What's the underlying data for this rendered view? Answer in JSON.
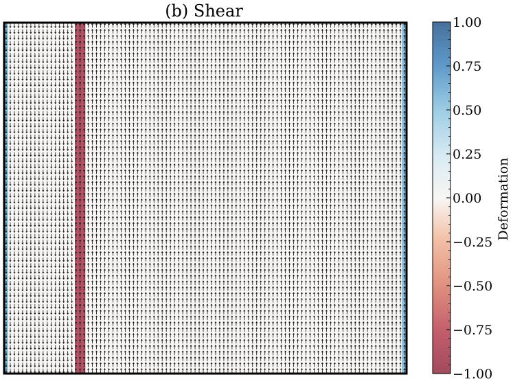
{
  "chart_data": {
    "type": "heatmap",
    "title": "(b) Shear",
    "xlabel": "",
    "ylabel": "",
    "grid": false,
    "field": {
      "description_of_bands": "vertical bands of deformation value across the horizontal extent",
      "x_range": [
        0,
        1
      ],
      "bands": [
        {
          "x0": 0.0,
          "x1": 0.01,
          "value": 0.55
        },
        {
          "x0": 0.01,
          "x1": 0.176,
          "value": 0.0
        },
        {
          "x0": 0.176,
          "x1": 0.202,
          "value": -0.9
        },
        {
          "x0": 0.202,
          "x1": 0.988,
          "value": 0.0
        },
        {
          "x0": 0.988,
          "x1": 1.0,
          "value": 0.55
        }
      ]
    },
    "quiver": {
      "columns": 98,
      "rows": 60,
      "direction_regions": [
        {
          "x0": 0.0,
          "x1": 0.176,
          "direction": "down"
        },
        {
          "x0": 0.176,
          "x1": 1.0,
          "direction": "up"
        }
      ]
    },
    "colorbar": {
      "label": "Deformation",
      "range": [
        -1.0,
        1.0
      ],
      "cmap": "RdBu",
      "ticks": [
        1.0,
        0.75,
        0.5,
        0.25,
        0.0,
        -0.25,
        -0.5,
        -0.75,
        -1.0
      ],
      "tick_labels": [
        "1.00",
        "0.75",
        "0.50",
        "0.25",
        "0.00",
        "−0.25",
        "−0.50",
        "−0.75",
        "−1.00"
      ],
      "colors": {
        "neg_end": "#a24a5e",
        "neg_mid": "#d0787c",
        "neg_light": "#f2c0a6",
        "zero": "#f8f6f4",
        "pos_light": "#bcdcea",
        "pos_mid": "#6fb0d8",
        "pos_end": "#47709b"
      }
    }
  }
}
